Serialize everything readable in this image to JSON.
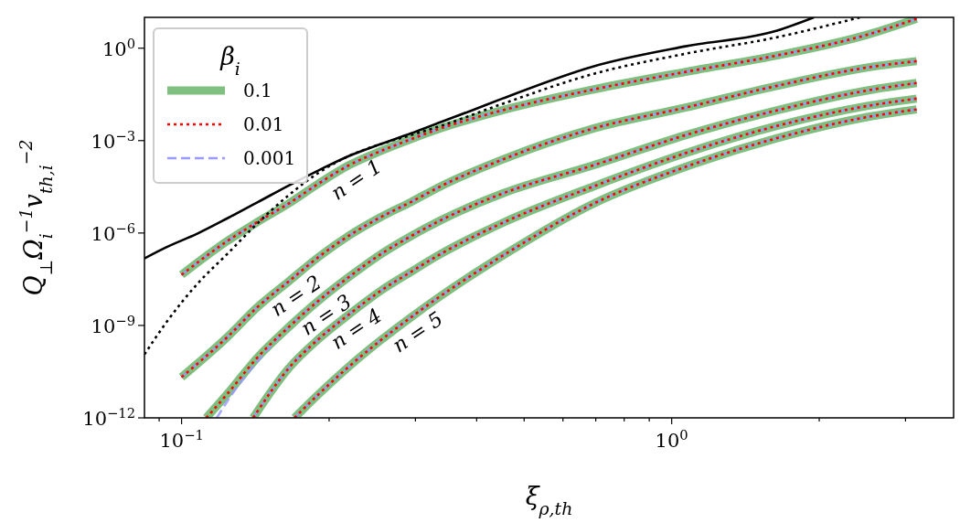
{
  "chart_data": {
    "type": "line",
    "xlabel": "ξ$_{ρ,th}$",
    "ylabel": "Q$_{⊥}$Ω$_{i}$$^{−1}$v$_{th,i}$$^{−2}$",
    "legend_title": "β$_{i}$",
    "legend": "top left",
    "log": "xy",
    "grid": false,
    "xlim": [
      0.084,
      3.76
    ],
    "ylim": [
      1e-12,
      10
    ],
    "xticks": [
      {
        "value": 0.09,
        "label": null
      },
      {
        "value": 0.1,
        "label": "10$^{−1}$"
      },
      {
        "value": 0.2,
        "label": null
      },
      {
        "value": 0.3,
        "label": null
      },
      {
        "value": 0.4,
        "label": null
      },
      {
        "value": 0.5,
        "label": null
      },
      {
        "value": 0.6,
        "label": null
      },
      {
        "value": 0.7,
        "label": null
      },
      {
        "value": 0.8,
        "label": null
      },
      {
        "value": 0.9,
        "label": null
      },
      {
        "value": 1,
        "label": "10$^{0}$"
      },
      {
        "value": 2,
        "label": null
      },
      {
        "value": 3,
        "label": null
      }
    ],
    "yticks": [
      {
        "value": 1e-12,
        "label": "10$^{−12}$"
      },
      {
        "value": 1e-09,
        "label": "10$^{−9}$"
      },
      {
        "value": 1e-06,
        "label": "10$^{−6}$"
      },
      {
        "value": 0.001,
        "label": "10$^{−3}$"
      },
      {
        "value": 1,
        "label": "10$^{0}$"
      }
    ],
    "annotations": [
      {
        "text": "n = 1",
        "x": 0.2198,
        "y": 0.00016
      },
      {
        "text": "n = 2",
        "x": 0.1655,
        "y": 2.7e-08
      },
      {
        "text": "n = 3",
        "x": 0.1907,
        "y": 6.5e-09
      },
      {
        "text": "n = 4",
        "x": 0.2198,
        "y": 2.3e-09
      },
      {
        "text": "n = 5",
        "x": 0.2933,
        "y": 1.8e-09
      }
    ],
    "series": [
      {
        "color": "#000000",
        "line_style": "solid",
        "x": [
          0.084,
          0.0929,
          0.1076,
          0.124,
          0.143,
          0.1655,
          0.1907,
          0.2198,
          0.2543,
          0.2933,
          0.338,
          0.3913,
          0.451,
          0.694,
          1.067,
          1.64,
          1.95
        ],
        "values": [
          1.5e-07,
          3.4e-07,
          9.5e-07,
          3e-06,
          1e-05,
          3.5e-05,
          0.00011,
          0.00032,
          0.00076,
          0.0017,
          0.004,
          0.0096,
          0.023,
          0.26,
          1.15,
          3.7,
          10
        ]
      },
      {
        "color": "#000000",
        "line_style": "dotted",
        "x": [
          0.084,
          0.0929,
          0.1076,
          0.124,
          0.143,
          0.1655,
          0.1907,
          0.2198,
          0.2543,
          0.2933,
          0.338,
          0.451,
          0.694,
          1.067,
          1.64,
          2.42
        ],
        "values": [
          1.15e-10,
          1.2e-09,
          2.2e-08,
          2.1e-07,
          2.1e-06,
          1.7e-05,
          9.2e-05,
          0.00032,
          0.00076,
          0.0015,
          0.003,
          0.0155,
          0.148,
          0.66,
          2.27,
          10
        ]
      },
      {
        "name": "0.1",
        "color": "#7fbf7f",
        "line_style": "solid",
        "x": [
          0.1,
          0.124,
          0.143,
          0.1655,
          0.1907,
          0.2198,
          0.2543,
          0.2933,
          0.338,
          0.451,
          0.694,
          1.067,
          1.64,
          2.52,
          3.16
        ],
        "values": [
          4.4e-08,
          5.5e-07,
          2.3e-06,
          9.1e-06,
          4.1e-05,
          0.00016,
          0.00045,
          0.0011,
          0.0025,
          0.0096,
          0.046,
          0.17,
          0.58,
          2.8,
          9
        ]
      },
      {
        "name": "0.01",
        "color": "#ff0000",
        "line_style": "dotted",
        "x": [
          0.1,
          0.124,
          0.143,
          0.1655,
          0.1907,
          0.2198,
          0.2543,
          0.2933,
          0.338,
          0.451,
          0.694,
          1.067,
          1.64,
          2.52,
          3.16
        ],
        "values": [
          4.4e-08,
          5.5e-07,
          2.3e-06,
          9.1e-06,
          4.1e-05,
          0.00016,
          0.00045,
          0.0011,
          0.0025,
          0.0096,
          0.046,
          0.17,
          0.58,
          2.8,
          9
        ]
      },
      {
        "name": "0.001",
        "color": "#9999ff",
        "line_style": "dashed",
        "x": [
          0.1,
          0.124,
          0.143,
          0.1655,
          0.1907,
          0.2198,
          0.2543,
          0.2933,
          0.338,
          0.451,
          0.694,
          1.067,
          1.64,
          2.52,
          3.16
        ],
        "values": [
          4.4e-08,
          5.5e-07,
          2.3e-06,
          9.1e-06,
          4.1e-05,
          0.00016,
          0.00045,
          0.0011,
          0.0025,
          0.0096,
          0.046,
          0.17,
          0.58,
          2.8,
          9
        ]
      },
      {
        "color": "#7fbf7f",
        "line_style": "solid",
        "x": [
          0.1,
          0.124,
          0.143,
          0.1655,
          0.1907,
          0.2198,
          0.2543,
          0.2933,
          0.338,
          0.451,
          0.694,
          1.067,
          1.64,
          2.52,
          3.16
        ],
        "values": [
          2.1e-11,
          4.2e-10,
          4e-09,
          2.7e-08,
          1.7e-07,
          8.3e-07,
          3.2e-06,
          1e-05,
          3.3e-05,
          0.00024,
          0.0025,
          0.0118,
          0.06,
          0.24,
          0.38
        ]
      },
      {
        "color": "#ff0000",
        "line_style": "dotted",
        "x": [
          0.1,
          0.124,
          0.143,
          0.1655,
          0.1907,
          0.2198,
          0.2543,
          0.2933,
          0.338,
          0.451,
          0.694,
          1.067,
          1.64,
          2.52,
          3.16
        ],
        "values": [
          2.1e-11,
          4.2e-10,
          4e-09,
          2.7e-08,
          1.7e-07,
          8.3e-07,
          3.2e-06,
          1e-05,
          3.3e-05,
          0.00024,
          0.0025,
          0.0118,
          0.06,
          0.24,
          0.38
        ]
      },
      {
        "color": "#9999ff",
        "line_style": "dashed",
        "x": [
          0.1,
          0.124,
          0.143,
          0.1655,
          0.1907,
          0.2198,
          0.2543,
          0.2933,
          0.338,
          0.451,
          0.694,
          1.067,
          1.64,
          2.52,
          3.16
        ],
        "values": [
          2.1e-11,
          4.2e-10,
          4e-09,
          2.7e-08,
          1.7e-07,
          8.3e-07,
          3.2e-06,
          1e-05,
          3.3e-05,
          0.00024,
          0.0025,
          0.0118,
          0.06,
          0.24,
          0.38
        ]
      },
      {
        "color": "#7fbf7f",
        "line_style": "solid",
        "x": [
          0.1123,
          0.124,
          0.143,
          0.1655,
          0.1907,
          0.2198,
          0.2543,
          0.2933,
          0.338,
          0.451,
          0.694,
          1.067,
          1.64,
          2.52,
          3.16
        ],
        "values": [
          1e-12,
          6e-12,
          9.3e-11,
          8.9e-10,
          6.5e-09,
          3.8e-08,
          2e-07,
          7.8e-07,
          2.6e-06,
          1.9e-05,
          0.00016,
          0.0015,
          0.0096,
          0.043,
          0.074
        ]
      },
      {
        "color": "#ff0000",
        "line_style": "dotted",
        "x": [
          0.1123,
          0.124,
          0.143,
          0.1655,
          0.1907,
          0.2198,
          0.2543,
          0.2933,
          0.338,
          0.451,
          0.694,
          1.067,
          1.64,
          2.52,
          3.16
        ],
        "values": [
          1e-12,
          6e-12,
          9.3e-11,
          8.9e-10,
          6.5e-09,
          3.8e-08,
          2e-07,
          7.8e-07,
          2.6e-06,
          1.9e-05,
          0.00016,
          0.0015,
          0.0096,
          0.043,
          0.074
        ]
      },
      {
        "color": "#9999ff",
        "line_style": "dashed",
        "x": [
          0.118,
          0.124,
          0.143,
          0.1655,
          0.1907,
          0.2198,
          0.2543,
          0.2933,
          0.338,
          0.451,
          0.694,
          1.067,
          1.64,
          2.52,
          3.16
        ],
        "values": [
          1e-12,
          3.5e-12,
          7e-11,
          8.9e-10,
          6.5e-09,
          3.8e-08,
          2e-07,
          7.8e-07,
          2.6e-06,
          1.9e-05,
          0.00016,
          0.0015,
          0.0096,
          0.043,
          0.074
        ]
      },
      {
        "color": "#7fbf7f",
        "line_style": "solid",
        "x": [
          0.14,
          0.1655,
          0.1907,
          0.2198,
          0.2543,
          0.2933,
          0.338,
          0.451,
          0.694,
          1.067,
          1.64,
          2.52,
          3.16
        ],
        "values": [
          1e-12,
          4.1e-11,
          3.7e-10,
          2.3e-09,
          1.3e-08,
          5.4e-08,
          2.1e-07,
          2.1e-06,
          3.3e-05,
          0.00039,
          0.003,
          0.0135,
          0.023
        ]
      },
      {
        "color": "#ff0000",
        "line_style": "dotted",
        "x": [
          0.14,
          0.1655,
          0.1907,
          0.2198,
          0.2543,
          0.2933,
          0.338,
          0.451,
          0.694,
          1.067,
          1.64,
          2.52,
          3.16
        ],
        "values": [
          1e-12,
          4.1e-11,
          3.7e-10,
          2.3e-09,
          1.3e-08,
          5.4e-08,
          2.1e-07,
          2.1e-06,
          3.3e-05,
          0.00039,
          0.003,
          0.0135,
          0.023
        ]
      },
      {
        "color": "#9999ff",
        "line_style": "dashed",
        "x": [
          0.14,
          0.1655,
          0.1907,
          0.2198,
          0.2543,
          0.2933,
          0.338,
          0.451,
          0.694,
          1.067,
          1.64,
          2.52,
          3.16
        ],
        "values": [
          1e-12,
          4.1e-11,
          3.7e-10,
          2.3e-09,
          1.3e-08,
          5.4e-08,
          2.1e-07,
          2.1e-06,
          3.3e-05,
          0.00039,
          0.003,
          0.0135,
          0.023
        ]
      },
      {
        "color": "#7fbf7f",
        "line_style": "solid",
        "x": [
          0.17,
          0.1907,
          0.2198,
          0.2543,
          0.2933,
          0.338,
          0.451,
          0.694,
          1.067,
          1.64,
          2.52,
          3.16
        ],
        "values": [
          1e-12,
          6e-12,
          4.7e-11,
          3.2e-10,
          1.8e-09,
          9.1e-09,
          1.8e-07,
          9.1e-06,
          0.00014,
          0.0012,
          0.0059,
          0.0103
        ]
      },
      {
        "color": "#ff0000",
        "line_style": "dotted",
        "x": [
          0.17,
          0.1907,
          0.2198,
          0.2543,
          0.2933,
          0.338,
          0.451,
          0.694,
          1.067,
          1.64,
          2.52,
          3.16
        ],
        "values": [
          1e-12,
          6e-12,
          4.7e-11,
          3.2e-10,
          1.8e-09,
          9.1e-09,
          1.8e-07,
          9.1e-06,
          0.00014,
          0.0012,
          0.0059,
          0.0103
        ]
      },
      {
        "color": "#9999ff",
        "line_style": "dashed",
        "x": [
          0.17,
          0.1907,
          0.2198,
          0.2543,
          0.2933,
          0.338,
          0.451,
          0.694,
          1.067,
          1.64,
          2.52,
          3.16
        ],
        "values": [
          1e-12,
          6e-12,
          4.7e-11,
          3.2e-10,
          1.8e-09,
          9.1e-09,
          1.8e-07,
          9.1e-06,
          0.00014,
          0.0012,
          0.0059,
          0.0103
        ]
      }
    ]
  }
}
